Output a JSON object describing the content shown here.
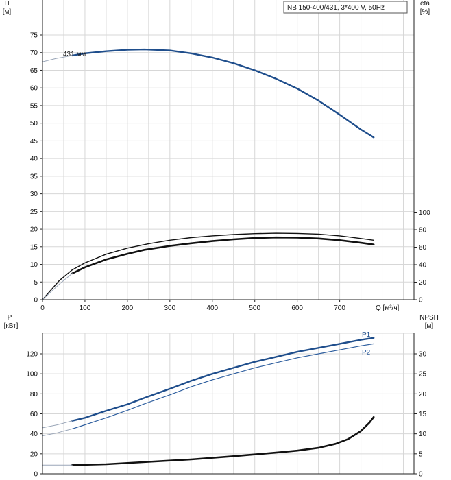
{
  "chart_data": [
    {
      "type": "line",
      "name": "head-efficiency",
      "legend_box": "NB 150-400/431, 3*400 V, 50Hz",
      "xlabel": "Q [м³/ч]",
      "x_ticks": [
        0,
        100,
        200,
        300,
        400,
        500,
        600,
        700
      ],
      "xlim": [
        0,
        875
      ],
      "left_axis": {
        "label_line1": "H",
        "label_line2": "[м]",
        "lim": [
          0,
          80
        ],
        "ticks": [
          0,
          5,
          10,
          15,
          20,
          25,
          30,
          35,
          40,
          45,
          50,
          55,
          60,
          65,
          70,
          75
        ]
      },
      "right_axis": {
        "label_line1": "eta",
        "label_line2": "[%]",
        "lim": [
          0,
          100
        ],
        "ticks": [
          0,
          20,
          40,
          60,
          80,
          100
        ]
      },
      "series": [
        {
          "name": "431 мм",
          "axis": "left",
          "color": "#1f4e8c",
          "width": 2.4,
          "x": [
            70,
            100,
            150,
            200,
            240,
            300,
            350,
            400,
            450,
            500,
            550,
            600,
            650,
            700,
            750,
            780
          ],
          "y": [
            69.2,
            69.8,
            70.4,
            70.8,
            70.9,
            70.6,
            69.8,
            68.6,
            67.0,
            65.0,
            62.6,
            59.8,
            56.4,
            52.4,
            48.2,
            46.0
          ]
        },
        {
          "name": "",
          "axis": "left",
          "color": "#9aa6b8",
          "width": 1,
          "x": [
            0,
            30,
            70
          ],
          "y": [
            67.4,
            68.3,
            69.2
          ]
        },
        {
          "name": "",
          "axis": "right",
          "color": "#111111",
          "width": 1.4,
          "x": [
            0,
            40,
            70,
            100,
            150,
            200,
            250,
            300,
            350,
            400,
            450,
            500,
            550,
            600,
            650,
            700,
            750,
            780
          ],
          "y": [
            0,
            22,
            34,
            42,
            52,
            59,
            64,
            68,
            71,
            73,
            74.5,
            75.5,
            76,
            75.8,
            75,
            73,
            70,
            68
          ]
        },
        {
          "name": "",
          "axis": "right",
          "color": "#111111",
          "width": 2.6,
          "x": [
            70,
            100,
            150,
            200,
            240,
            300,
            350,
            400,
            450,
            500,
            550,
            600,
            650,
            700,
            750,
            780
          ],
          "y": [
            30,
            37,
            46,
            52.5,
            57,
            61.5,
            64.5,
            67,
            69,
            70.5,
            71.2,
            71,
            70,
            68,
            65,
            63
          ]
        },
        {
          "name": "",
          "axis": "right",
          "color": "#9aa6b8",
          "width": 1,
          "x": [
            0,
            40,
            70
          ],
          "y": [
            0,
            18,
            30
          ]
        }
      ]
    },
    {
      "type": "line",
      "name": "power-npsh",
      "xlim": [
        0,
        875
      ],
      "left_axis": {
        "label_line1": "P",
        "label_line2": "[кВт]",
        "lim": [
          0,
          140
        ],
        "ticks": [
          0,
          20,
          40,
          60,
          80,
          100,
          120
        ]
      },
      "right_axis": {
        "label_line1": "NPSH",
        "label_line2": "[м]",
        "lim": [
          0,
          35
        ],
        "ticks": [
          0,
          5,
          10,
          15,
          20,
          25,
          30
        ]
      },
      "series": [
        {
          "name": "P1",
          "axis": "left",
          "color": "#1f4e8c",
          "width": 2.4,
          "x": [
            70,
            100,
            150,
            200,
            240,
            300,
            350,
            400,
            450,
            500,
            550,
            600,
            650,
            700,
            750,
            780
          ],
          "y": [
            53,
            56,
            63,
            69.5,
            76,
            85,
            93,
            100,
            106,
            112,
            117,
            122,
            126,
            130,
            134,
            136
          ]
        },
        {
          "name": "P2",
          "axis": "left",
          "color": "#2f5f9f",
          "width": 1.2,
          "x": [
            70,
            100,
            150,
            200,
            240,
            300,
            350,
            400,
            450,
            500,
            550,
            600,
            650,
            700,
            750,
            780
          ],
          "y": [
            45,
            49,
            56,
            63.5,
            70,
            79,
            87,
            94,
            100,
            106,
            111,
            116,
            120,
            124,
            128,
            130
          ]
        },
        {
          "name": "",
          "axis": "left",
          "color": "#9aa6b8",
          "width": 1,
          "x": [
            0,
            35,
            70
          ],
          "y": [
            46,
            49,
            53
          ]
        },
        {
          "name": "",
          "axis": "left",
          "color": "#9aa6b8",
          "width": 1,
          "x": [
            0,
            35,
            70
          ],
          "y": [
            38,
            41,
            45
          ]
        },
        {
          "name": "",
          "axis": "right",
          "color": "#111111",
          "width": 2.6,
          "x": [
            70,
            150,
            250,
            350,
            450,
            550,
            600,
            650,
            690,
            720,
            750,
            770,
            780
          ],
          "y": [
            2.2,
            2.4,
            3.0,
            3.6,
            4.4,
            5.3,
            5.8,
            6.5,
            7.5,
            8.7,
            10.7,
            12.8,
            14.2
          ]
        },
        {
          "name": "",
          "axis": "right",
          "color": "#9aa6b8",
          "width": 1,
          "x": [
            0,
            70
          ],
          "y": [
            2.2,
            2.2
          ]
        }
      ]
    }
  ],
  "annotations": {
    "curve_label": "431 мм",
    "p1_label": "P1",
    "p2_label": "P2"
  }
}
